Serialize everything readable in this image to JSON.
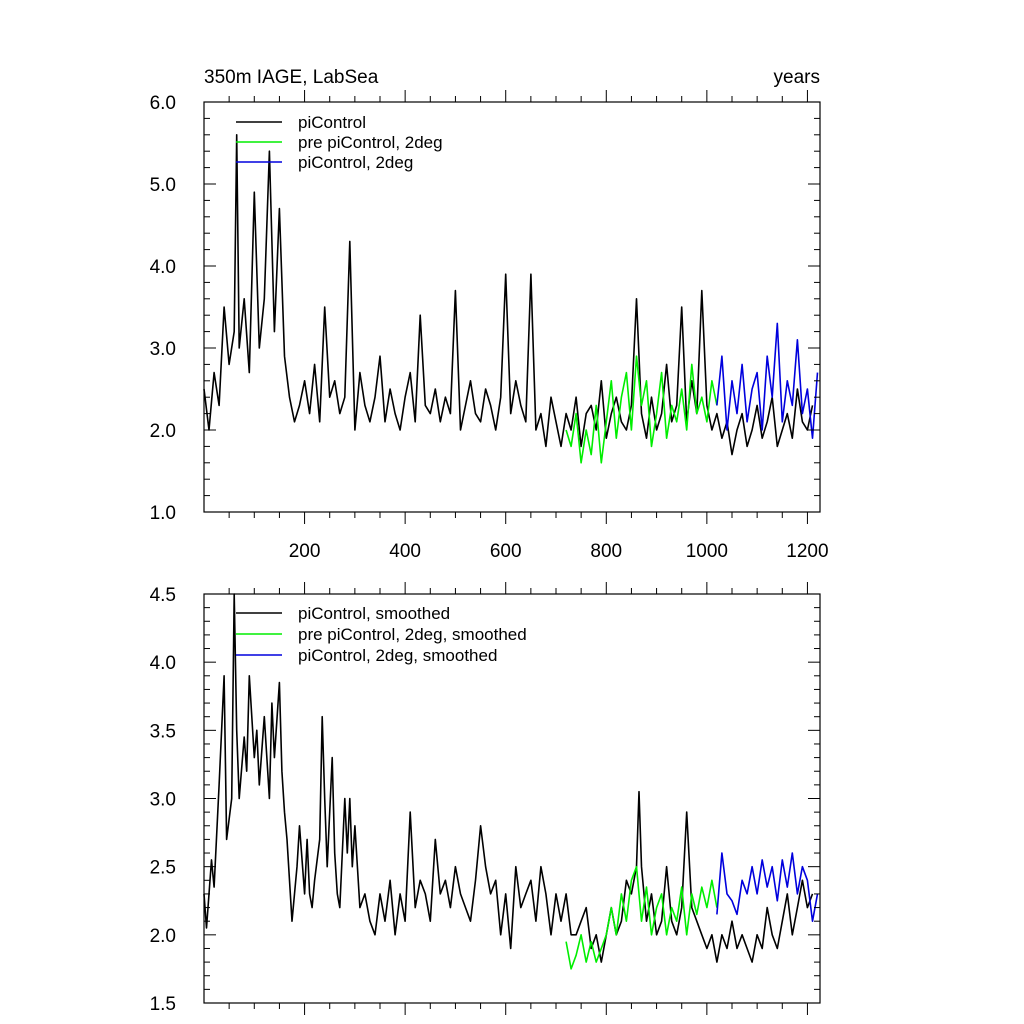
{
  "figure": {
    "title_left": "350m IAGE, LabSea",
    "title_right": "years"
  },
  "colors": {
    "piControl": "#000000",
    "pre_piControl_2deg": "#00ee00",
    "piControl_2deg": "#0000dd",
    "axis": "#000000",
    "background": "#ffffff"
  },
  "chart_data": [
    {
      "type": "line",
      "title": "350m IAGE, LabSea",
      "title_right": "years",
      "xlabel": "",
      "ylabel": "",
      "xlim": [
        0,
        1225
      ],
      "ylim": [
        1.0,
        6.0
      ],
      "x_ticks": [
        200,
        400,
        600,
        800,
        1000,
        1200
      ],
      "x_tick_labels": [
        "200",
        "400",
        "600",
        "800",
        "1000",
        "1200"
      ],
      "y_ticks": [
        1.0,
        2.0,
        3.0,
        4.0,
        5.0,
        6.0
      ],
      "y_tick_labels": [
        "1.0",
        "2.0",
        "3.0",
        "4.0",
        "5.0",
        "6.0"
      ],
      "grid": false,
      "legend_position": "top-left",
      "series": [
        {
          "name": "piControl",
          "color": "#000000",
          "x": [
            0,
            10,
            20,
            30,
            40,
            50,
            60,
            65,
            70,
            80,
            90,
            100,
            110,
            120,
            130,
            140,
            150,
            160,
            170,
            180,
            190,
            200,
            210,
            220,
            230,
            240,
            250,
            260,
            270,
            280,
            290,
            300,
            310,
            320,
            330,
            340,
            350,
            360,
            370,
            380,
            390,
            400,
            410,
            420,
            430,
            440,
            450,
            460,
            470,
            480,
            490,
            500,
            510,
            520,
            530,
            540,
            550,
            560,
            570,
            580,
            590,
            600,
            610,
            620,
            630,
            640,
            650,
            660,
            670,
            680,
            690,
            700,
            710,
            720,
            730,
            740,
            750,
            760,
            770,
            780,
            790,
            800,
            810,
            820,
            830,
            840,
            850,
            860,
            870,
            880,
            890,
            900,
            910,
            920,
            930,
            940,
            950,
            960,
            970,
            980,
            990,
            1000,
            1010,
            1020,
            1030,
            1040,
            1050,
            1060,
            1070,
            1080,
            1090,
            1100,
            1110,
            1120,
            1130,
            1140,
            1150,
            1160,
            1170,
            1180,
            1190,
            1200,
            1210
          ],
          "y": [
            2.5,
            2.0,
            2.7,
            2.3,
            3.5,
            2.8,
            3.2,
            5.6,
            3.0,
            3.6,
            2.7,
            4.9,
            3.0,
            3.6,
            5.4,
            3.2,
            4.7,
            2.9,
            2.4,
            2.1,
            2.3,
            2.6,
            2.2,
            2.8,
            2.1,
            3.5,
            2.4,
            2.6,
            2.2,
            2.4,
            4.3,
            2.0,
            2.7,
            2.3,
            2.1,
            2.4,
            2.9,
            2.1,
            2.5,
            2.2,
            2.0,
            2.4,
            2.7,
            2.1,
            3.4,
            2.3,
            2.2,
            2.5,
            2.1,
            2.4,
            2.2,
            3.7,
            2.0,
            2.3,
            2.6,
            2.2,
            2.1,
            2.5,
            2.3,
            2.0,
            2.4,
            3.9,
            2.2,
            2.6,
            2.3,
            2.1,
            3.9,
            2.0,
            2.2,
            1.8,
            2.4,
            2.1,
            1.8,
            2.2,
            2.0,
            2.4,
            1.8,
            2.2,
            2.3,
            2.0,
            2.6,
            1.9,
            2.2,
            2.4,
            2.1,
            2.0,
            2.3,
            3.6,
            2.2,
            1.9,
            2.4,
            2.0,
            2.2,
            2.8,
            2.1,
            2.3,
            3.5,
            2.1,
            2.6,
            2.2,
            3.7,
            2.3,
            2.0,
            2.2,
            1.9,
            2.1,
            1.7,
            2.0,
            2.2,
            1.8,
            2.0,
            2.3,
            1.9,
            2.1,
            2.4,
            1.8,
            2.0,
            2.2,
            1.9,
            2.5,
            2.1,
            2.0,
            2.3
          ]
        },
        {
          "name": "pre piControl, 2deg",
          "color": "#00ee00",
          "x": [
            720,
            730,
            740,
            750,
            760,
            770,
            780,
            790,
            800,
            810,
            820,
            830,
            840,
            850,
            860,
            870,
            880,
            890,
            900,
            910,
            920,
            930,
            940,
            950,
            960,
            970,
            980,
            990,
            1000,
            1010,
            1020
          ],
          "y": [
            2.0,
            1.8,
            2.2,
            1.6,
            2.0,
            1.7,
            2.3,
            1.6,
            2.1,
            2.6,
            1.9,
            2.4,
            2.7,
            2.0,
            2.9,
            2.3,
            2.6,
            1.8,
            2.2,
            2.7,
            1.9,
            2.3,
            2.1,
            2.5,
            2.0,
            2.8,
            2.2,
            2.4,
            2.1,
            2.6,
            2.3
          ]
        },
        {
          "name": "piControl, 2deg",
          "color": "#0000dd",
          "x": [
            1020,
            1030,
            1040,
            1050,
            1060,
            1070,
            1080,
            1090,
            1100,
            1110,
            1120,
            1130,
            1140,
            1150,
            1160,
            1170,
            1180,
            1190,
            1200,
            1210,
            1220
          ],
          "y": [
            2.3,
            2.9,
            2.0,
            2.6,
            2.2,
            2.8,
            2.1,
            2.5,
            2.7,
            2.0,
            2.9,
            2.4,
            3.3,
            2.1,
            2.6,
            2.3,
            3.1,
            2.2,
            2.5,
            1.9,
            2.7
          ]
        }
      ]
    },
    {
      "type": "line",
      "title": "",
      "xlabel": "",
      "ylabel": "",
      "xlim": [
        0,
        1225
      ],
      "ylim": [
        1.5,
        4.5
      ],
      "x_ticks": [
        200,
        400,
        600,
        800,
        1000,
        1200
      ],
      "y_ticks": [
        1.5,
        2.0,
        2.5,
        3.0,
        3.5,
        4.0,
        4.5
      ],
      "y_tick_labels": [
        "1.5",
        "2.0",
        "2.5",
        "3.0",
        "3.5",
        "4.0",
        "4.5"
      ],
      "grid": false,
      "legend_position": "top-left",
      "series": [
        {
          "name": "piControl, smoothed",
          "color": "#000000",
          "x": [
            0,
            5,
            15,
            20,
            30,
            40,
            45,
            55,
            60,
            65,
            70,
            80,
            85,
            90,
            100,
            105,
            110,
            120,
            130,
            135,
            140,
            150,
            155,
            160,
            165,
            175,
            180,
            185,
            190,
            200,
            205,
            210,
            215,
            220,
            230,
            235,
            240,
            245,
            255,
            260,
            265,
            270,
            280,
            285,
            290,
            295,
            300,
            310,
            320,
            330,
            340,
            350,
            360,
            370,
            380,
            390,
            400,
            410,
            420,
            430,
            440,
            450,
            460,
            470,
            480,
            490,
            500,
            510,
            520,
            530,
            540,
            550,
            560,
            570,
            580,
            590,
            600,
            610,
            620,
            630,
            640,
            650,
            660,
            670,
            680,
            690,
            700,
            710,
            720,
            730,
            740,
            750,
            760,
            770,
            780,
            790,
            800,
            810,
            820,
            830,
            840,
            850,
            860,
            865,
            870,
            880,
            890,
            900,
            910,
            920,
            930,
            940,
            950,
            960,
            970,
            980,
            990,
            1000,
            1010,
            1020,
            1030,
            1040,
            1050,
            1060,
            1070,
            1080,
            1090,
            1100,
            1110,
            1120,
            1130,
            1140,
            1150,
            1160,
            1170,
            1180,
            1190,
            1200,
            1210
          ],
          "y": [
            2.3,
            2.05,
            2.55,
            2.35,
            3.1,
            3.9,
            2.7,
            3.0,
            4.5,
            3.5,
            3.0,
            3.45,
            3.2,
            3.9,
            3.3,
            3.5,
            3.1,
            3.6,
            3.0,
            3.7,
            3.3,
            3.85,
            3.2,
            2.9,
            2.7,
            2.1,
            2.3,
            2.5,
            2.8,
            2.3,
            2.7,
            2.3,
            2.2,
            2.4,
            2.7,
            3.6,
            3.0,
            2.5,
            3.3,
            2.6,
            2.3,
            2.2,
            3.0,
            2.6,
            3.0,
            2.5,
            2.8,
            2.2,
            2.3,
            2.1,
            2.0,
            2.3,
            2.1,
            2.4,
            2.0,
            2.3,
            2.1,
            2.9,
            2.2,
            2.4,
            2.3,
            2.1,
            2.7,
            2.3,
            2.4,
            2.2,
            2.5,
            2.3,
            2.2,
            2.1,
            2.4,
            2.8,
            2.5,
            2.3,
            2.4,
            2.0,
            2.3,
            1.9,
            2.5,
            2.2,
            2.3,
            2.4,
            2.1,
            2.5,
            2.3,
            2.0,
            2.3,
            2.1,
            2.3,
            2.0,
            2.0,
            2.1,
            2.2,
            1.9,
            2.0,
            1.8,
            2.0,
            2.2,
            2.0,
            2.1,
            2.4,
            2.3,
            2.5,
            3.05,
            2.5,
            2.1,
            2.3,
            2.0,
            2.1,
            2.5,
            2.1,
            2.0,
            2.2,
            2.9,
            2.2,
            2.1,
            2.0,
            1.9,
            2.0,
            1.8,
            2.0,
            1.9,
            2.1,
            1.9,
            2.0,
            1.9,
            1.8,
            2.0,
            1.9,
            2.2,
            2.0,
            1.9,
            2.1,
            2.3,
            2.0,
            2.2,
            2.4,
            2.2,
            2.3
          ]
        },
        {
          "name": "pre piControl, 2deg, smoothed",
          "color": "#00ee00",
          "x": [
            720,
            730,
            740,
            750,
            760,
            770,
            780,
            790,
            800,
            810,
            820,
            830,
            840,
            850,
            860,
            870,
            880,
            890,
            900,
            910,
            920,
            930,
            940,
            950,
            960,
            970,
            980,
            990,
            1000,
            1010,
            1020
          ],
          "y": [
            1.95,
            1.75,
            1.85,
            2.0,
            1.8,
            1.95,
            1.8,
            1.9,
            2.0,
            2.2,
            2.0,
            2.3,
            2.1,
            2.4,
            2.5,
            2.1,
            2.35,
            2.0,
            2.2,
            2.3,
            2.0,
            2.2,
            2.1,
            2.35,
            2.0,
            2.3,
            2.15,
            2.35,
            2.2,
            2.4,
            2.2
          ]
        },
        {
          "name": "piControl, 2deg, smoothed",
          "color": "#0000dd",
          "x": [
            1020,
            1030,
            1040,
            1050,
            1060,
            1070,
            1080,
            1090,
            1100,
            1110,
            1120,
            1130,
            1140,
            1150,
            1160,
            1170,
            1180,
            1190,
            1200,
            1210,
            1220
          ],
          "y": [
            2.15,
            2.6,
            2.3,
            2.25,
            2.15,
            2.4,
            2.3,
            2.5,
            2.3,
            2.55,
            2.35,
            2.5,
            2.25,
            2.55,
            2.35,
            2.6,
            2.3,
            2.5,
            2.4,
            2.1,
            2.3
          ]
        }
      ]
    }
  ]
}
